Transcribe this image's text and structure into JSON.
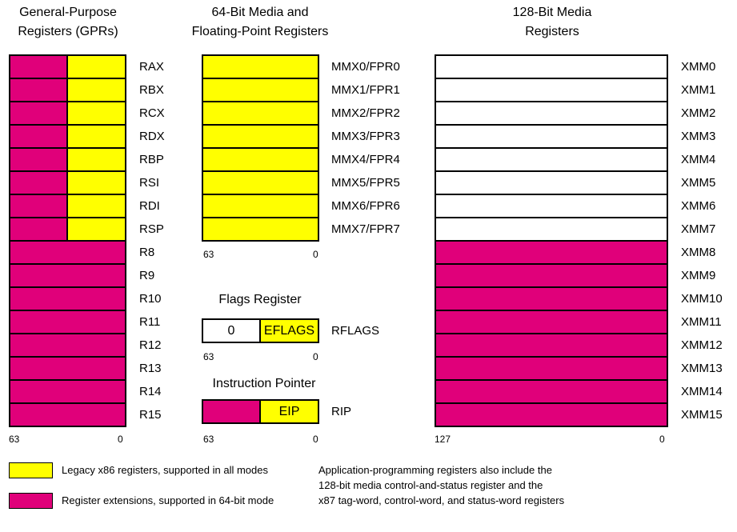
{
  "titles": {
    "gpr": [
      "General-Purpose",
      "Registers (GPRs)"
    ],
    "mmx": [
      "64-Bit Media and",
      "Floating-Point Registers"
    ],
    "xmm": [
      "128-Bit Media",
      "Registers"
    ],
    "flags": "Flags Register",
    "ip": "Instruction Pointer"
  },
  "gpr_registers": [
    "RAX",
    "RBX",
    "RCX",
    "RDX",
    "RBP",
    "RSI",
    "RDI",
    "RSP",
    "R8",
    "R9",
    "R10",
    "R11",
    "R12",
    "R13",
    "R14",
    "R15"
  ],
  "gpr_legacy_count": 8,
  "gpr_bits": {
    "high": "63",
    "low": "0"
  },
  "mmx_registers": [
    "MMX0/FPR0",
    "MMX1/FPR1",
    "MMX2/FPR2",
    "MMX3/FPR3",
    "MMX4/FPR4",
    "MMX5/FPR5",
    "MMX6/FPR6",
    "MMX7/FPR7"
  ],
  "mmx_bits": {
    "high": "63",
    "low": "0"
  },
  "xmm_registers": [
    "XMM0",
    "XMM1",
    "XMM2",
    "XMM3",
    "XMM4",
    "XMM5",
    "XMM6",
    "XMM7",
    "XMM8",
    "XMM9",
    "XMM10",
    "XMM11",
    "XMM12",
    "XMM13",
    "XMM14",
    "XMM15"
  ],
  "xmm_legacy_count": 8,
  "xmm_bits": {
    "high": "127",
    "low": "0"
  },
  "flags": {
    "high_value": "0",
    "low_value": "EFLAGS",
    "name": "RFLAGS",
    "bit_high": "63",
    "bit_low": "0"
  },
  "ip": {
    "low_value": "EIP",
    "name": "RIP",
    "bit_high": "63",
    "bit_low": "0"
  },
  "legend": {
    "legacy": "Legacy x86 registers, supported in all modes",
    "extension": "Register extensions, supported in 64-bit mode"
  },
  "note": [
    "Application-programming registers also include the",
    "128-bit media control-and-status register and the",
    "x87 tag-word, control-word, and status-word registers"
  ],
  "colors": {
    "legacy": "#ffff00",
    "extension": "#e0007a"
  }
}
